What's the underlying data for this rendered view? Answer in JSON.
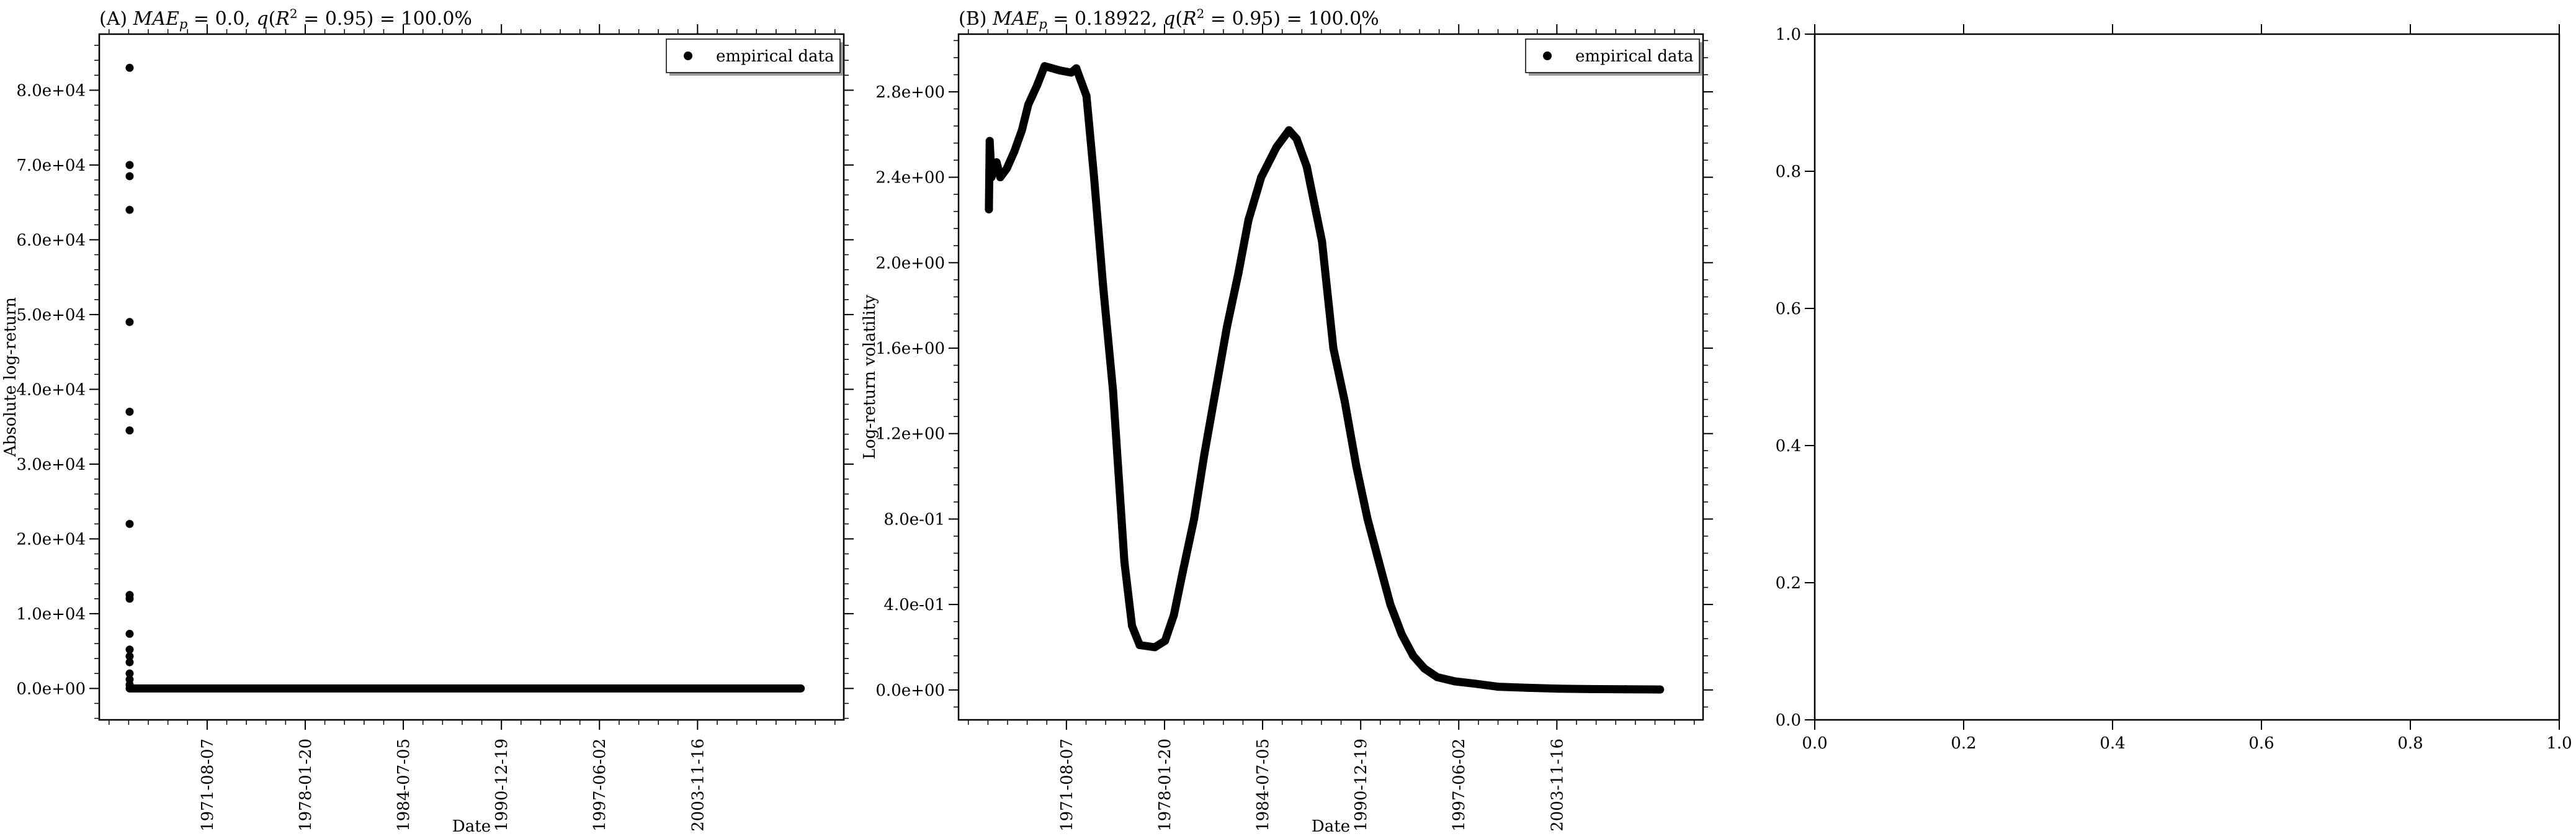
{
  "chart_data": [
    {
      "type": "scatter",
      "title": "(A) MAE_p = 0.0, q(R^2 = 0.95) = 100.0%",
      "xlabel": "Date",
      "ylabel": "Absolute log-return",
      "x_tick_labels": [
        "1971-08-07",
        "1978-01-20",
        "1984-07-05",
        "1990-12-19",
        "1997-06-02",
        "2003-11-16"
      ],
      "x_ticks": [
        "1971-08-07",
        "1978-01-20",
        "1984-07-05",
        "1990-12-19",
        "1997-06-02",
        "2003-11-16"
      ],
      "xlim": [
        "1964-07-01",
        "2013-07-01"
      ],
      "y_tick_labels": [
        "0.0e+00",
        "1.0e+04",
        "2.0e+04",
        "3.0e+04",
        "4.0e+04",
        "5.0e+04",
        "6.0e+04",
        "7.0e+04",
        "8.0e+04"
      ],
      "y_ticks": [
        0,
        10000,
        20000,
        30000,
        40000,
        50000,
        60000,
        70000,
        80000
      ],
      "ylim": [
        -4200,
        87500
      ],
      "legend": {
        "label": "empirical data",
        "placement": "top-right"
      },
      "series": [
        {
          "name": "empirical data",
          "points": [
            {
              "x": "1966-07-01",
              "y": 83000
            },
            {
              "x": "1966-07-01",
              "y": 70000
            },
            {
              "x": "1966-07-01",
              "y": 68500
            },
            {
              "x": "1966-07-01",
              "y": 64000
            },
            {
              "x": "1966-07-01",
              "y": 49000
            },
            {
              "x": "1966-07-01",
              "y": 37000
            },
            {
              "x": "1966-07-01",
              "y": 34500
            },
            {
              "x": "1966-07-01",
              "y": 22000
            },
            {
              "x": "1966-07-01",
              "y": 12500
            },
            {
              "x": "1966-07-01",
              "y": 12000
            },
            {
              "x": "1966-07-01",
              "y": 7300
            },
            {
              "x": "1966-07-01",
              "y": 5200
            },
            {
              "x": "1966-07-01",
              "y": 4300
            },
            {
              "x": "1966-07-01",
              "y": 3500
            },
            {
              "x": "1966-07-01",
              "y": 2000
            },
            {
              "x": "1966-07-01",
              "y": 1200
            },
            {
              "x": "1966-07-01",
              "y": 500
            }
          ],
          "flat_segment": {
            "x_start": "1966-07-01",
            "x_end": "2010-09-01",
            "y": 0
          }
        }
      ]
    },
    {
      "type": "scatter",
      "title": "(B) MAE_p = 0.18922, q(R^2 = 0.95) = 100.0%",
      "xlabel": "Date",
      "ylabel": "Log-return volatility",
      "x_tick_labels": [
        "1971-08-07",
        "1978-01-20",
        "1984-07-05",
        "1990-12-19",
        "1997-06-02",
        "2003-11-16"
      ],
      "x_ticks": [
        "1971-08-07",
        "1978-01-20",
        "1984-07-05",
        "1990-12-19",
        "1997-06-02",
        "2003-11-16"
      ],
      "xlim": [
        "1964-07-01",
        "2013-07-01"
      ],
      "y_tick_labels": [
        "0.0e+00",
        "4.0e-01",
        "8.0e-01",
        "1.2e+00",
        "1.6e+00",
        "2.0e+00",
        "2.4e+00",
        "2.8e+00"
      ],
      "y_ticks": [
        0,
        0.4,
        0.8,
        1.2,
        1.6,
        2.0,
        2.4,
        2.8
      ],
      "ylim": [
        -0.14,
        3.07
      ],
      "legend": {
        "label": "empirical data",
        "placement": "top-right"
      },
      "series": [
        {
          "name": "empirical data",
          "points": [
            {
              "x": "1966-07-01",
              "y": 2.25
            },
            {
              "x": "1966-07-20",
              "y": 2.57
            },
            {
              "x": "1966-09-01",
              "y": 2.4
            },
            {
              "x": "1966-11-01",
              "y": 2.44
            },
            {
              "x": "1967-01-01",
              "y": 2.47
            },
            {
              "x": "1967-04-01",
              "y": 2.4
            },
            {
              "x": "1967-09-01",
              "y": 2.44
            },
            {
              "x": "1968-03-01",
              "y": 2.52
            },
            {
              "x": "1968-09-01",
              "y": 2.62
            },
            {
              "x": "1969-02-01",
              "y": 2.74
            },
            {
              "x": "1969-09-01",
              "y": 2.83
            },
            {
              "x": "1970-03-01",
              "y": 2.92
            },
            {
              "x": "1971-03-01",
              "y": 2.9
            },
            {
              "x": "1971-12-01",
              "y": 2.89
            },
            {
              "x": "1972-04-01",
              "y": 2.91
            },
            {
              "x": "1972-12-01",
              "y": 2.78
            },
            {
              "x": "1973-06-01",
              "y": 2.4
            },
            {
              "x": "1974-01-01",
              "y": 1.9
            },
            {
              "x": "1974-09-01",
              "y": 1.4
            },
            {
              "x": "1975-02-01",
              "y": 0.95
            },
            {
              "x": "1975-06-01",
              "y": 0.6
            },
            {
              "x": "1975-12-01",
              "y": 0.3
            },
            {
              "x": "1976-06-01",
              "y": 0.21
            },
            {
              "x": "1977-06-01",
              "y": 0.2
            },
            {
              "x": "1978-02-01",
              "y": 0.23
            },
            {
              "x": "1978-09-01",
              "y": 0.35
            },
            {
              "x": "1979-04-01",
              "y": 0.55
            },
            {
              "x": "1980-01-01",
              "y": 0.8
            },
            {
              "x": "1980-09-01",
              "y": 1.1
            },
            {
              "x": "1981-06-01",
              "y": 1.4
            },
            {
              "x": "1982-03-01",
              "y": 1.7
            },
            {
              "x": "1982-12-01",
              "y": 1.95
            },
            {
              "x": "1983-08-01",
              "y": 2.2
            },
            {
              "x": "1984-06-01",
              "y": 2.4
            },
            {
              "x": "1985-06-01",
              "y": 2.54
            },
            {
              "x": "1986-04-01",
              "y": 2.62
            },
            {
              "x": "1986-10-01",
              "y": 2.58
            },
            {
              "x": "1987-06-01",
              "y": 2.45
            },
            {
              "x": "1988-06-01",
              "y": 2.1
            },
            {
              "x": "1989-03-01",
              "y": 1.6
            },
            {
              "x": "1989-12-01",
              "y": 1.35
            },
            {
              "x": "1990-09-01",
              "y": 1.05
            },
            {
              "x": "1991-06-01",
              "y": 0.8
            },
            {
              "x": "1992-03-01",
              "y": 0.6
            },
            {
              "x": "1992-12-01",
              "y": 0.4
            },
            {
              "x": "1993-09-01",
              "y": 0.26
            },
            {
              "x": "1994-06-01",
              "y": 0.16
            },
            {
              "x": "1995-03-01",
              "y": 0.1
            },
            {
              "x": "1996-01-01",
              "y": 0.06
            },
            {
              "x": "1997-03-01",
              "y": 0.04
            },
            {
              "x": "1998-06-01",
              "y": 0.03
            },
            {
              "x": "2000-01-01",
              "y": 0.015
            },
            {
              "x": "2002-01-01",
              "y": 0.01
            },
            {
              "x": "2004-01-01",
              "y": 0.006
            },
            {
              "x": "2006-01-01",
              "y": 0.004
            },
            {
              "x": "2008-06-01",
              "y": 0.003
            },
            {
              "x": "2010-09-01",
              "y": 0.002
            }
          ]
        }
      ]
    },
    {
      "type": "scatter",
      "title": "",
      "xlabel": "",
      "ylabel": "",
      "x_tick_labels": [
        "0.0",
        "0.2",
        "0.4",
        "0.6",
        "0.8",
        "1.0"
      ],
      "x_ticks": [
        0,
        0.2,
        0.4,
        0.6,
        0.8,
        1.0
      ],
      "xlim": [
        0,
        1
      ],
      "y_tick_labels": [
        "0.0",
        "0.2",
        "0.4",
        "0.6",
        "0.8",
        "1.0"
      ],
      "y_ticks": [
        0,
        0.2,
        0.4,
        0.6,
        0.8,
        1.0
      ],
      "ylim": [
        0,
        1
      ],
      "series": []
    }
  ]
}
